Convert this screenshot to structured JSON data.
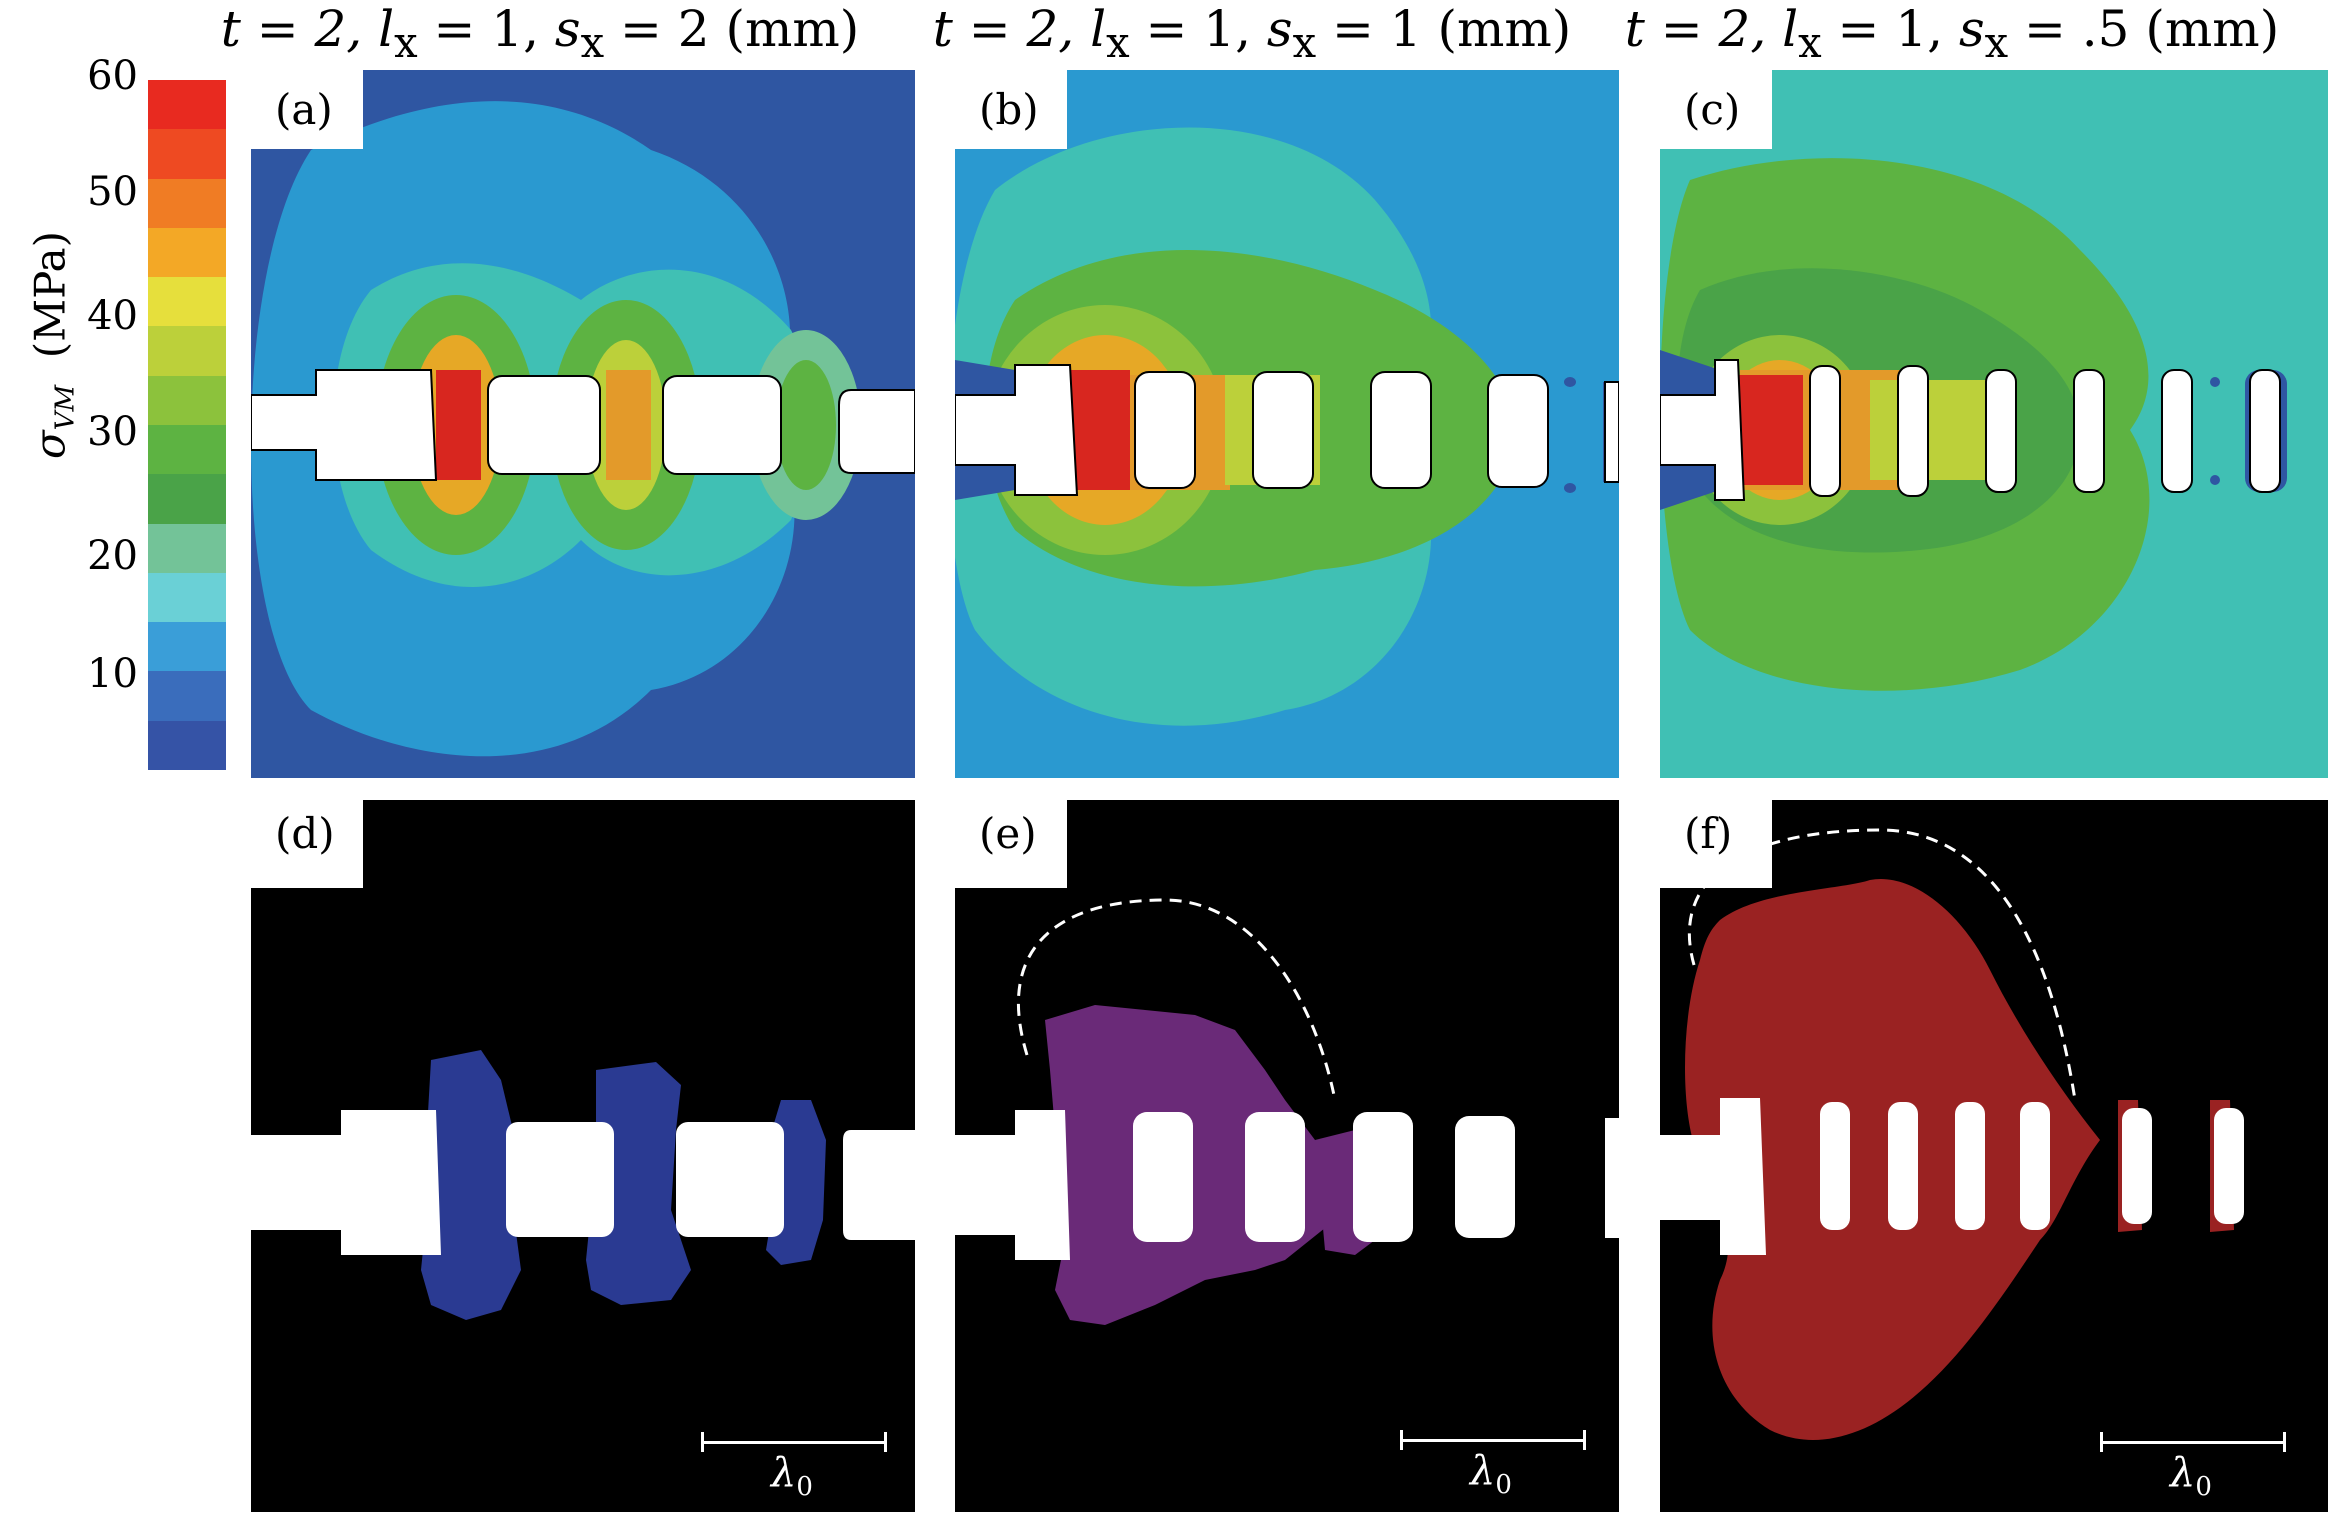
{
  "column_titles": [
    {
      "t": "t = 2,",
      "l": "l",
      "lsub": "x",
      "lval": " = 1,",
      "s": "s",
      "ssub": "x",
      "sval": " = 2 (mm)"
    },
    {
      "t": "t = 2,",
      "l": "l",
      "lsub": "x",
      "lval": " = 1,",
      "s": "s",
      "ssub": "x",
      "sval": " = 1 (mm)"
    },
    {
      "t": "t = 2,",
      "l": "l",
      "lsub": "x",
      "lval": " = 1,",
      "s": "s",
      "ssub": "x",
      "sval": " = .5 (mm)"
    }
  ],
  "panel_labels": [
    "(a)",
    "(b)",
    "(c)",
    "(d)",
    "(e)",
    "(f)"
  ],
  "colorbar": {
    "title": "σ",
    "title_sub": "VM",
    "units": "(MPa)",
    "ticks": [
      "60",
      "50",
      "40",
      "30",
      "20",
      "10"
    ],
    "colors": [
      "#e82a20",
      "#ee4a22",
      "#f07c24",
      "#f3a826",
      "#e6df3c",
      "#bcd03a",
      "#8cc23c",
      "#5db342",
      "#4aa348",
      "#73c398",
      "#6ad0d6",
      "#3a9ed8",
      "#3a6dbc",
      "#3553a6"
    ]
  },
  "scale_label": "λ",
  "scale_sub": "0",
  "colors": {
    "background_a": "#2f56a2",
    "background_b": "#2a99d0",
    "background_c": "#40c0b4",
    "region_d": "#2a3a92",
    "region_e": "#6a2a78",
    "region_f": "#9a2222",
    "black": "#000000"
  }
}
